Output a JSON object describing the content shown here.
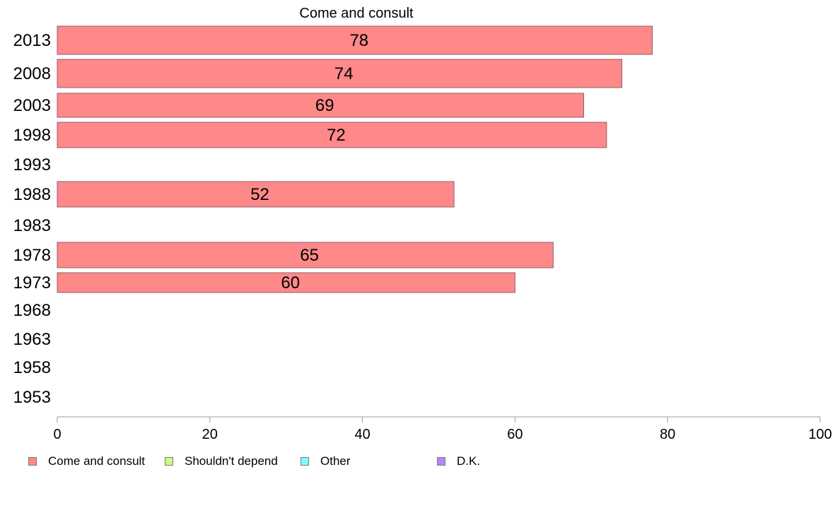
{
  "chart_data": {
    "type": "bar",
    "orientation": "horizontal",
    "title": "Come and consult",
    "categories": [
      "2013",
      "2008",
      "2003",
      "1998",
      "1993",
      "1988",
      "1983",
      "1978",
      "1973",
      "1968",
      "1963",
      "1958",
      "1953"
    ],
    "series": [
      {
        "name": "Come and consult",
        "color": "#ff8888",
        "values": [
          78,
          74,
          69,
          72,
          null,
          52,
          null,
          65,
          60,
          null,
          null,
          null,
          null
        ]
      },
      {
        "name": "Shouldn't depend",
        "color": "#c8ff80",
        "values": [
          null,
          null,
          null,
          null,
          null,
          null,
          null,
          null,
          null,
          null,
          null,
          null,
          null
        ]
      },
      {
        "name": "Other",
        "color": "#80ffff",
        "values": [
          null,
          null,
          null,
          null,
          null,
          null,
          null,
          null,
          null,
          null,
          null,
          null,
          null
        ]
      },
      {
        "name": "D.K.",
        "color": "#b388ff",
        "values": [
          null,
          null,
          null,
          null,
          null,
          null,
          null,
          null,
          null,
          null,
          null,
          null,
          null
        ]
      }
    ],
    "data_labels": [
      "78",
      "74",
      "69",
      "72",
      "",
      "52",
      "",
      "65",
      "60",
      "",
      "",
      "",
      ""
    ],
    "xlim": [
      0,
      100
    ],
    "xticks": [
      "0",
      "20",
      "40",
      "60",
      "80",
      "100"
    ],
    "grid": false,
    "legend_position": "bottom"
  }
}
